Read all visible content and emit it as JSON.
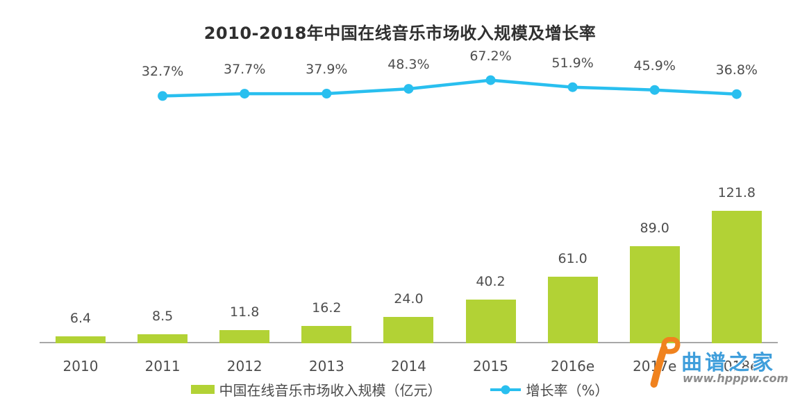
{
  "chart_data": {
    "type": "bar",
    "title": "2010-2018年中国在线音乐市场收入规模及增长率",
    "categories": [
      "2010",
      "2011",
      "2012",
      "2013",
      "2014",
      "2015",
      "2016e",
      "2017e",
      "2018e"
    ],
    "series": [
      {
        "name": "中国在线音乐市场收入规模（亿元）",
        "type": "bar",
        "color": "#b2d235",
        "values": [
          6.4,
          8.5,
          11.8,
          16.2,
          24.0,
          40.2,
          61.0,
          89.0,
          121.8
        ],
        "value_labels": [
          "6.4",
          "8.5",
          "11.8",
          "16.2",
          "24.0",
          "40.2",
          "61.0",
          "89.0",
          "121.8"
        ]
      },
      {
        "name": "增长率（%）",
        "type": "line",
        "color": "#29bfef",
        "categories": [
          "2011",
          "2012",
          "2013",
          "2014",
          "2015",
          "2016e",
          "2017e",
          "2018e"
        ],
        "values": [
          32.7,
          37.7,
          37.9,
          48.3,
          67.2,
          51.9,
          45.9,
          36.8
        ],
        "value_labels": [
          "32.7%",
          "37.7%",
          "37.9%",
          "48.3%",
          "67.2%",
          "51.9%",
          "45.9%",
          "36.8%"
        ]
      }
    ],
    "legend_position": "bottom",
    "grid": false,
    "ylim_bar": [
      0,
      130
    ],
    "ylim_line_pct": [
      0,
      80
    ]
  },
  "legend": {
    "revenue_label": "中国在线音乐市场收入规模（亿元）",
    "growth_label": "增长率（%）"
  },
  "watermark": {
    "title": "曲谱之家",
    "url": "www.hpppw.com"
  },
  "colors": {
    "bar": "#b2d235",
    "line": "#29bfef",
    "title_text": "#2f2f2f",
    "label_text": "#4d4d4d",
    "axis_line": "#a8a8a8",
    "watermark_blue": "#3f9edb",
    "watermark_orange": "#f0821e",
    "watermark_url_gray": "#8c8c8c"
  }
}
